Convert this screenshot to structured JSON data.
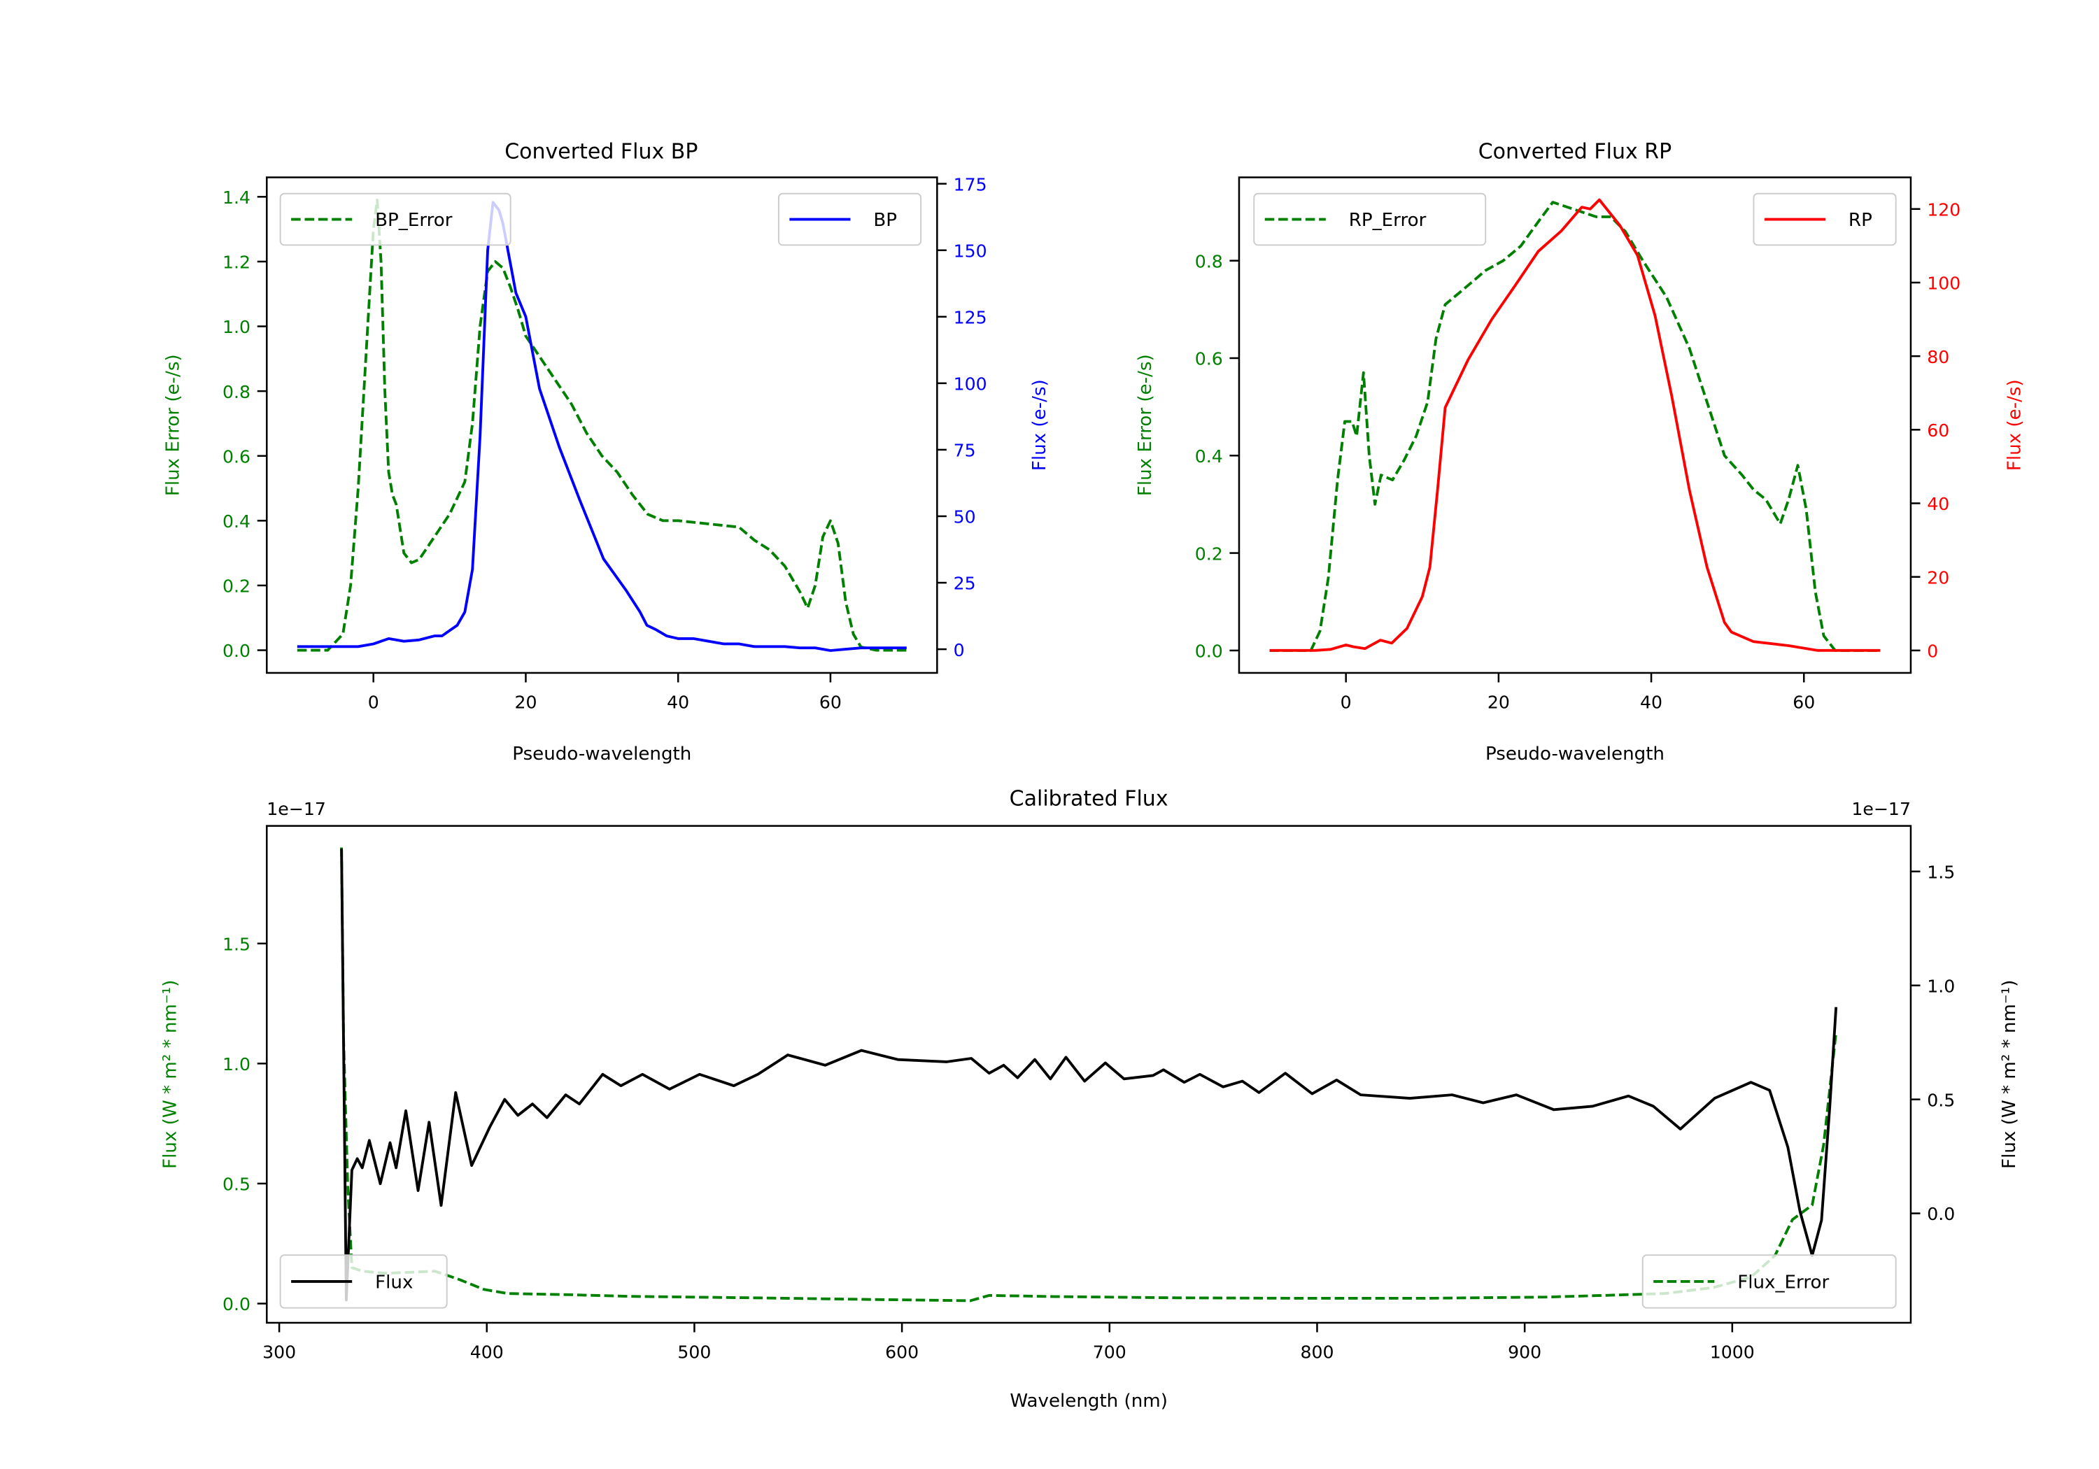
{
  "chart_data": [
    {
      "type": "line",
      "title": "Converted Flux BP",
      "xlabel": "Pseudo-wavelength",
      "ylabel_left": "Flux Error (e-/s)",
      "ylabel_right": "Flux (e-/s)",
      "xlim": [
        -14,
        74
      ],
      "ylim_left": [
        -0.07,
        1.46
      ],
      "ylim_right": [
        -8.9,
        177.4
      ],
      "xticks": [
        0,
        20,
        40,
        60
      ],
      "xtick_labels": [
        "0",
        "20",
        "40",
        "60"
      ],
      "yticks_left": [
        0,
        0.2,
        0.4,
        0.6,
        0.8,
        1.0,
        1.2,
        1.4
      ],
      "ytick_labels_left": [
        "0.0",
        "0.2",
        "0.4",
        "0.6",
        "0.8",
        "1.0",
        "1.2",
        "1.4"
      ],
      "yticks_right": [
        0,
        25,
        50,
        75,
        100,
        125,
        150,
        175
      ],
      "ytick_labels_right": [
        "0",
        "25",
        "50",
        "75",
        "100",
        "125",
        "150",
        "175"
      ],
      "left_color": "#008000",
      "right_color": "#0000ff",
      "legends": [
        {
          "label": "BP_Error",
          "color": "#008000",
          "style": "dashed",
          "placement": "upper-left"
        },
        {
          "label": "BP",
          "color": "#0000ff",
          "style": "solid",
          "placement": "upper-right"
        }
      ],
      "series": [
        {
          "name": "BP_Error",
          "axis": "left",
          "color": "#008000",
          "style": "dashed",
          "x": [
            -10,
            -6,
            -4,
            -3,
            -2,
            -1,
            0,
            0.5,
            1,
            1.5,
            2,
            2.5,
            3,
            4,
            5,
            6,
            8,
            10,
            12,
            13,
            14,
            15,
            16,
            17,
            18,
            19,
            20,
            22,
            24,
            26,
            28,
            30,
            32,
            34,
            36,
            38,
            40,
            44,
            48,
            50,
            52,
            54,
            56,
            57,
            58,
            59,
            60,
            61,
            62,
            63,
            64,
            66,
            70
          ],
          "y": [
            0,
            0,
            0.05,
            0.2,
            0.5,
            0.9,
            1.3,
            1.39,
            1.2,
            0.8,
            0.55,
            0.48,
            0.45,
            0.3,
            0.27,
            0.28,
            0.35,
            0.42,
            0.52,
            0.7,
            1.0,
            1.17,
            1.2,
            1.18,
            1.12,
            1.05,
            0.97,
            0.9,
            0.83,
            0.76,
            0.67,
            0.6,
            0.55,
            0.48,
            0.42,
            0.4,
            0.4,
            0.39,
            0.38,
            0.34,
            0.31,
            0.26,
            0.18,
            0.13,
            0.2,
            0.35,
            0.4,
            0.33,
            0.15,
            0.05,
            0.01,
            0,
            0
          ]
        },
        {
          "name": "BP",
          "axis": "right",
          "color": "#0000ff",
          "style": "solid",
          "x": [
            -10,
            -5,
            -2,
            0,
            2,
            4,
            6,
            8,
            9,
            10,
            11,
            12,
            13,
            14,
            15,
            15.7,
            16.5,
            17,
            18.7,
            20,
            21.8,
            24.4,
            27.1,
            30.2,
            33.2,
            35,
            35.9,
            37,
            38.5,
            40,
            42,
            44,
            46,
            48,
            50,
            52,
            54,
            56,
            58,
            60,
            62,
            64,
            66,
            70
          ],
          "y": [
            1,
            1,
            1,
            2,
            4,
            3,
            3.5,
            5,
            5,
            7,
            9,
            14,
            30,
            80,
            150,
            168,
            165,
            160,
            134,
            125,
            98,
            76,
            56,
            34,
            22,
            14,
            9,
            7.5,
            5,
            4,
            4,
            3,
            2,
            2,
            1,
            1,
            1,
            0.5,
            0.5,
            -0.5,
            0,
            0.5,
            0.5,
            0.5
          ]
        }
      ]
    },
    {
      "type": "line",
      "title": "Converted Flux RP",
      "xlabel": "Pseudo-wavelength",
      "ylabel_left": "Flux Error (e-/s)",
      "ylabel_right": "Flux (e-/s)",
      "xlim": [
        -14,
        74
      ],
      "ylim_left": [
        -0.046,
        0.971
      ],
      "ylim_right": [
        -6.1,
        128.6
      ],
      "xticks": [
        0,
        20,
        40,
        60
      ],
      "xtick_labels": [
        "0",
        "20",
        "40",
        "60"
      ],
      "yticks_left": [
        0,
        0.2,
        0.4,
        0.6,
        0.8
      ],
      "ytick_labels_left": [
        "0.0",
        "0.2",
        "0.4",
        "0.6",
        "0.8"
      ],
      "yticks_right": [
        0,
        20,
        40,
        60,
        80,
        100,
        120
      ],
      "ytick_labels_right": [
        "0",
        "20",
        "40",
        "60",
        "80",
        "100",
        "120"
      ],
      "left_color": "#008000",
      "right_color": "#ff0000",
      "legends": [
        {
          "label": "RP_Error",
          "color": "#008000",
          "style": "dashed",
          "placement": "upper-left"
        },
        {
          "label": "RP",
          "color": "#ff0000",
          "style": "solid",
          "placement": "upper-right"
        }
      ],
      "series": [
        {
          "name": "RP_Error",
          "axis": "left",
          "color": "#008000",
          "style": "dashed",
          "x": [
            -10,
            -4.6,
            -3.4,
            -2.3,
            -1.1,
            -0.15,
            0.8,
            1.4,
            2.3,
            3.05,
            3.8,
            4.6,
            6.1,
            7.6,
            9.2,
            10.7,
            11.8,
            13,
            15.3,
            18.3,
            20.6,
            22.9,
            25.2,
            27.1,
            29,
            30.9,
            32.8,
            34.7,
            36.6,
            38.9,
            42,
            45,
            47.3,
            49.6,
            51.9,
            53.4,
            55,
            56.9,
            58,
            59.2,
            60.3,
            61.5,
            62.6,
            64.1,
            70
          ],
          "y": [
            0,
            0,
            0.04,
            0.15,
            0.35,
            0.47,
            0.47,
            0.44,
            0.57,
            0.4,
            0.3,
            0.36,
            0.35,
            0.39,
            0.44,
            0.51,
            0.64,
            0.71,
            0.74,
            0.78,
            0.8,
            0.83,
            0.88,
            0.92,
            0.91,
            0.9,
            0.89,
            0.89,
            0.86,
            0.8,
            0.725,
            0.62,
            0.51,
            0.4,
            0.36,
            0.33,
            0.31,
            0.26,
            0.31,
            0.38,
            0.29,
            0.12,
            0.03,
            0,
            0
          ]
        },
        {
          "name": "RP",
          "axis": "right",
          "color": "#ff0000",
          "style": "solid",
          "x": [
            -10,
            -4,
            -2,
            0,
            1,
            2.5,
            4.5,
            6,
            8,
            10,
            11,
            12,
            13,
            16,
            19.1,
            22.1,
            25.2,
            28.2,
            30.9,
            32,
            33.2,
            35.9,
            38.2,
            40.5,
            42.7,
            45,
            47.3,
            49.6,
            50.5,
            53.4,
            58,
            61.8,
            70
          ],
          "y": [
            0,
            0,
            0.3,
            1.5,
            1,
            0.5,
            2.8,
            2,
            6,
            14.6,
            22.7,
            43.6,
            66,
            79,
            90,
            99,
            108.5,
            114,
            120.5,
            120,
            122.5,
            115.5,
            107.4,
            91,
            69,
            43.6,
            22.7,
            7.6,
            5,
            2.4,
            1.3,
            0,
            0
          ]
        }
      ]
    },
    {
      "type": "line",
      "title": "Calibrated Flux",
      "xlabel": "Wavelength (nm)",
      "ylabel_left": "Flux (W * m² * nm⁻¹)",
      "ylabel_right": "Flux (W * m² * nm⁻¹)",
      "offset_left": "1e−17",
      "offset_right": "1e−17",
      "xlim": [
        294,
        1086
      ],
      "ylim_left": [
        -0.08,
        1.99
      ],
      "ylim_right": [
        -0.48,
        1.7
      ],
      "xticks": [
        300,
        400,
        500,
        600,
        700,
        800,
        900,
        1000
      ],
      "xtick_labels": [
        "300",
        "400",
        "500",
        "600",
        "700",
        "800",
        "900",
        "1000"
      ],
      "yticks_left": [
        0,
        0.5,
        1.0,
        1.5
      ],
      "ytick_labels_left": [
        "0.0",
        "0.5",
        "1.0",
        "1.5"
      ],
      "yticks_right": [
        0,
        0.5,
        1.0,
        1.5
      ],
      "ytick_labels_right": [
        "0.0",
        "0.5",
        "1.0",
        "1.5"
      ],
      "left_color": "#008000",
      "right_color": "#000000",
      "legends": [
        {
          "label": "Flux",
          "color": "#000000",
          "style": "solid",
          "placement": "lower-left"
        },
        {
          "label": "Flux_Error",
          "color": "#008000",
          "style": "dashed",
          "placement": "lower-right"
        }
      ],
      "series": [
        {
          "name": "Flux_Error",
          "axis": "left",
          "color": "#008000",
          "style": "dashed",
          "x": [
            330,
            331,
            333,
            335,
            340,
            351.6,
            375,
            386.8,
            398.6,
            410,
            439.7,
            469,
            527.7,
            586,
            633,
            642,
            674,
            733,
            792,
            851,
            910,
            938,
            967.7,
            991,
            1009,
            1020.6,
            1029,
            1038.5,
            1044,
            1050
          ],
          "y": [
            1.9,
            1.1,
            0.49,
            0.15,
            0.135,
            0.126,
            0.135,
            0.1,
            0.059,
            0.042,
            0.037,
            0.03,
            0.024,
            0.017,
            0.012,
            0.034,
            0.029,
            0.024,
            0.022,
            0.022,
            0.027,
            0.034,
            0.042,
            0.067,
            0.11,
            0.2,
            0.35,
            0.41,
            0.66,
            1.13
          ]
        },
        {
          "name": "Flux",
          "axis": "right",
          "color": "#000000",
          "style": "solid",
          "x": [
            330,
            332.3,
            335,
            337.6,
            340,
            343.4,
            348.7,
            353.4,
            356.3,
            361,
            366.9,
            372.2,
            378,
            385,
            392.7,
            401.5,
            408.6,
            415,
            422,
            429,
            438,
            444.6,
            455.8,
            464.6,
            475,
            488,
            502.5,
            519,
            530.6,
            545,
            563,
            580.5,
            598,
            621.6,
            633.4,
            642,
            649,
            655.7,
            664,
            671.5,
            679,
            688,
            698,
            707,
            721,
            726,
            736,
            743.5,
            754.7,
            764,
            772,
            784.7,
            797.6,
            809.4,
            821,
            844.7,
            865,
            880,
            896,
            914,
            932.7,
            950,
            962,
            975,
            991.5,
            1009,
            1018,
            1026.8,
            1032.6,
            1038.5,
            1043,
            1047,
            1050
          ],
          "y": [
            1.6,
            -0.38,
            0.19,
            0.24,
            0.2,
            0.32,
            0.13,
            0.31,
            0.2,
            0.45,
            0.1,
            0.4,
            0.035,
            0.53,
            0.21,
            0.38,
            0.5,
            0.43,
            0.48,
            0.42,
            0.52,
            0.48,
            0.61,
            0.56,
            0.61,
            0.545,
            0.61,
            0.56,
            0.61,
            0.695,
            0.65,
            0.715,
            0.675,
            0.665,
            0.68,
            0.615,
            0.65,
            0.595,
            0.675,
            0.59,
            0.685,
            0.58,
            0.66,
            0.59,
            0.605,
            0.63,
            0.575,
            0.61,
            0.555,
            0.58,
            0.53,
            0.615,
            0.525,
            0.585,
            0.52,
            0.505,
            0.52,
            0.485,
            0.52,
            0.455,
            0.47,
            0.515,
            0.47,
            0.37,
            0.505,
            0.575,
            0.54,
            0.29,
            0.01,
            -0.185,
            -0.03,
            0.47,
            0.905
          ]
        }
      ]
    }
  ]
}
